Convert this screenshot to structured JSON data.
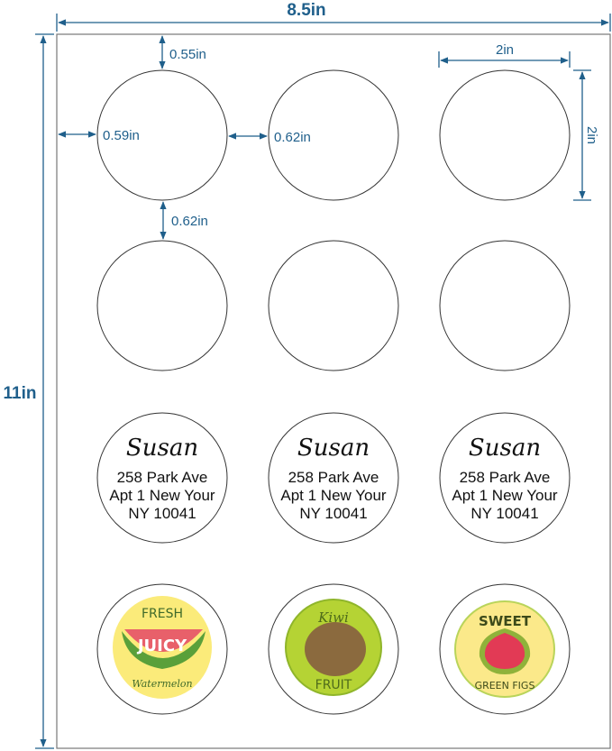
{
  "sheet": {
    "width_label": "8.5in",
    "height_label": "11in"
  },
  "dimensions": {
    "top_margin": "0.55in",
    "left_margin": "0.59in",
    "horizontal_gap": "0.62in",
    "vertical_gap": "0.62in",
    "label_width": "2in",
    "label_height": "2in"
  },
  "address_label": {
    "name": "Susan",
    "line1": "258 Park Ave",
    "line2": "Apt 1 New Your",
    "line3": "NY 10041"
  },
  "fruit_labels": [
    {
      "top": "FRESH",
      "middle": "JUICY",
      "bottom": "Watermelon",
      "bg": "#fbeb7a",
      "accent": "#e8606a"
    },
    {
      "top": "Kiwi",
      "middle": "",
      "bottom": "FRUIT",
      "bg": "#b5d334",
      "accent": "#8b6a3e"
    },
    {
      "top": "SWEET",
      "middle": "",
      "bottom": "GREEN FIGS",
      "bg": "#fbe98a",
      "accent": "#e23a55"
    }
  ],
  "colors": {
    "dimension": "#1f5f8b",
    "outline": "#333333"
  }
}
